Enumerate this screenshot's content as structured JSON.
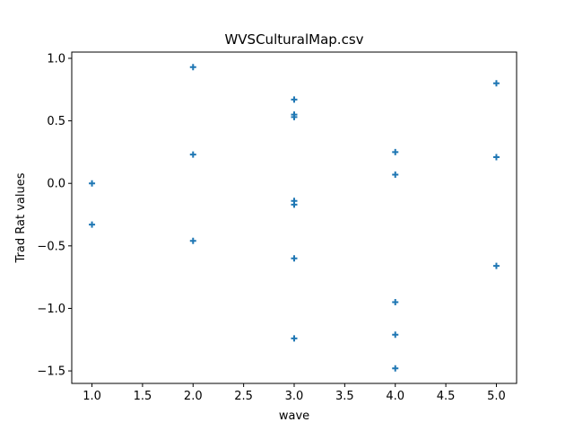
{
  "chart_data": {
    "type": "scatter",
    "title": "WVSCulturalMap.csv",
    "xlabel": "wave",
    "ylabel": "Trad Rat values",
    "xlim": [
      0.8,
      5.2
    ],
    "ylim": [
      -1.6,
      1.05
    ],
    "xticks": [
      1.0,
      1.5,
      2.0,
      2.5,
      3.0,
      3.5,
      4.0,
      4.5,
      5.0
    ],
    "xtick_labels": [
      "1.0",
      "1.5",
      "2.0",
      "2.5",
      "3.0",
      "3.5",
      "4.0",
      "4.5",
      "5.0"
    ],
    "yticks": [
      1.0,
      0.5,
      0.0,
      -0.5,
      -1.0,
      -1.5
    ],
    "ytick_labels": [
      "1.0",
      "0.5",
      "0.0",
      "−0.5",
      "−1.0",
      "−1.5"
    ],
    "marker": "plus",
    "color": "#1f77b4",
    "grid": false,
    "points": [
      {
        "x": 1,
        "y": 0.0
      },
      {
        "x": 1,
        "y": -0.33
      },
      {
        "x": 2,
        "y": 0.93
      },
      {
        "x": 2,
        "y": 0.23
      },
      {
        "x": 2,
        "y": -0.46
      },
      {
        "x": 3,
        "y": 0.67
      },
      {
        "x": 3,
        "y": 0.55
      },
      {
        "x": 3,
        "y": 0.53
      },
      {
        "x": 3,
        "y": -0.14
      },
      {
        "x": 3,
        "y": -0.17
      },
      {
        "x": 3,
        "y": -0.6
      },
      {
        "x": 3,
        "y": -1.24
      },
      {
        "x": 4,
        "y": 0.25
      },
      {
        "x": 4,
        "y": 0.07
      },
      {
        "x": 4,
        "y": -0.95
      },
      {
        "x": 4,
        "y": -1.21
      },
      {
        "x": 4,
        "y": -1.48
      },
      {
        "x": 5,
        "y": 0.8
      },
      {
        "x": 5,
        "y": 0.21
      },
      {
        "x": 5,
        "y": -0.66
      }
    ]
  }
}
